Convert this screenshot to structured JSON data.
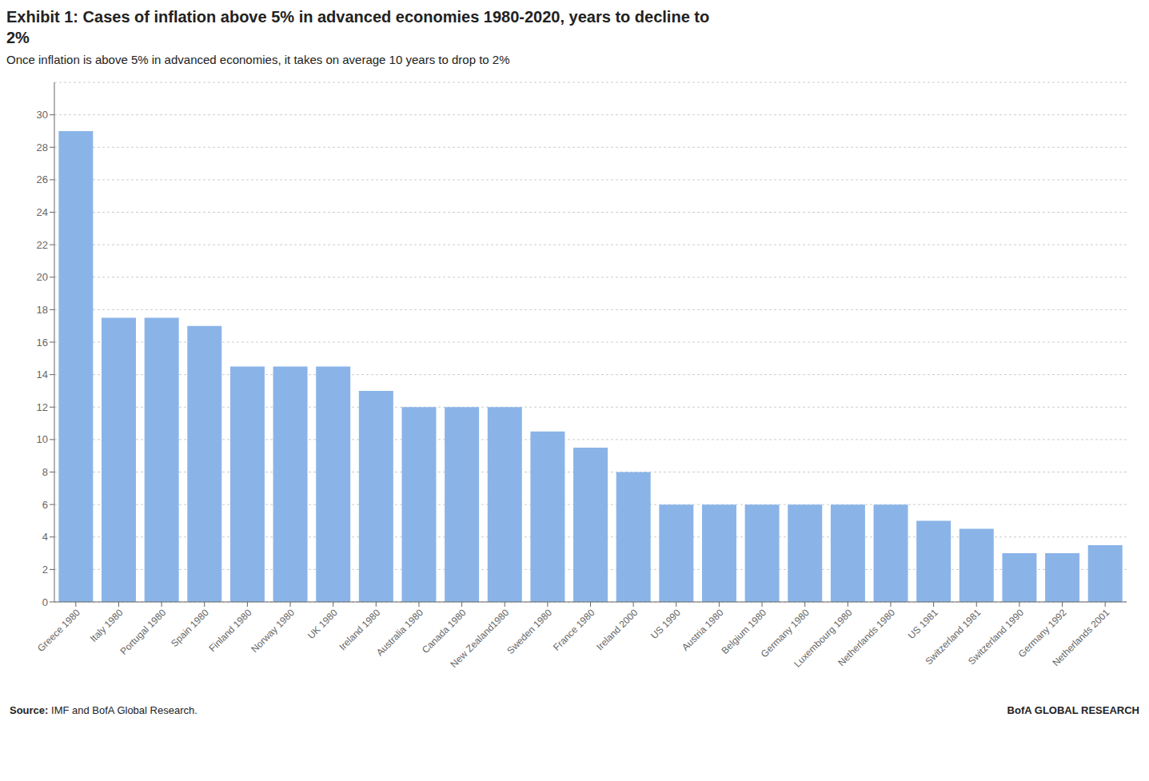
{
  "chart_data": {
    "type": "bar",
    "title": "Exhibit 1: Cases of inflation above 5% in advanced economies 1980-2020, years to decline to\n2%",
    "subtitle": "Once inflation is above 5% in advanced economies, it takes on average 10 years to drop to 2%",
    "annotations": [
      "Source: IMF and BofA Global Research.",
      "BofA GLOBAL RESEARCH"
    ],
    "categories": [
      "Greece 1980",
      "Italy 1980",
      "Portugal 1980",
      "Spain 1980",
      "Finland 1980",
      "Norway 1980",
      "UK 1980",
      "Ireland 1980",
      "Australia 1980",
      "Canada 1980",
      "New Zealand1980",
      "Sweden 1980",
      "France 1980",
      "Ireland 2000",
      "US 1990",
      "Austria 1980",
      "Belgium 1980",
      "Germany 1980",
      "Luxembourg 1980",
      "Netherlands 1980",
      "US 1981",
      "Switzerland 1981",
      "Switzerland 1990",
      "Germany 1992",
      "Netherlands 2001"
    ],
    "values": [
      29,
      17.5,
      17.5,
      17,
      14.5,
      14.5,
      14.5,
      13,
      12,
      12,
      12,
      10.5,
      9.5,
      8,
      6,
      6,
      6,
      6,
      6,
      6,
      5,
      4.5,
      3,
      3,
      3.5
    ],
    "color": "#8ab4e8",
    "ylim": [
      0,
      32
    ],
    "yticks": [
      0,
      2,
      4,
      6,
      8,
      10,
      12,
      14,
      16,
      18,
      20,
      22,
      24,
      26,
      28,
      30
    ],
    "grid": true
  }
}
